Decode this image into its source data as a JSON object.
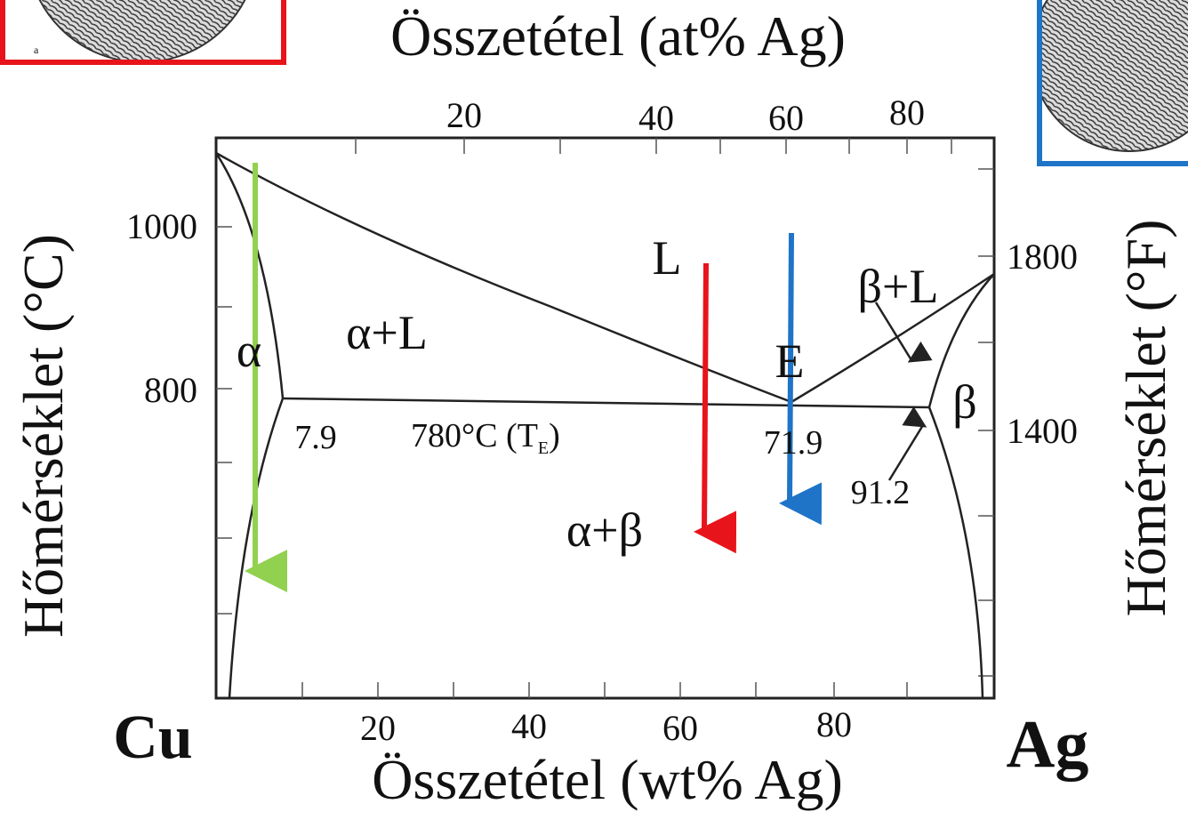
{
  "title_top": "Összetétel (at% Ag)",
  "title_bottom": "Összetétel (wt% Ag)",
  "axis_left": "Hőmérséklet (°C)",
  "axis_right": "Hőmérséklet (°F)",
  "ticks_top": [
    "20",
    "40",
    "60",
    "80"
  ],
  "ticks_bottom": [
    "20",
    "40",
    "60",
    "80"
  ],
  "ticks_left": [
    "1000",
    "800"
  ],
  "ticks_right": [
    "1800",
    "1400"
  ],
  "element_left": "Cu",
  "element_right": "Ag",
  "inset_label": "a",
  "regions": {
    "alpha": "α",
    "alpha_liquid": "α+L",
    "liquid": "L",
    "eutectic": "E",
    "beta_liquid": "β+L",
    "beta": "β",
    "alpha_beta": "α+β"
  },
  "annotations": {
    "alpha_limit": "7.9",
    "eutectic_comp": "71.9",
    "beta_limit": "91.2",
    "eutectic_temp": {
      "text": "780°C (T",
      "subscript": "E",
      "close": ")"
    }
  }
}
